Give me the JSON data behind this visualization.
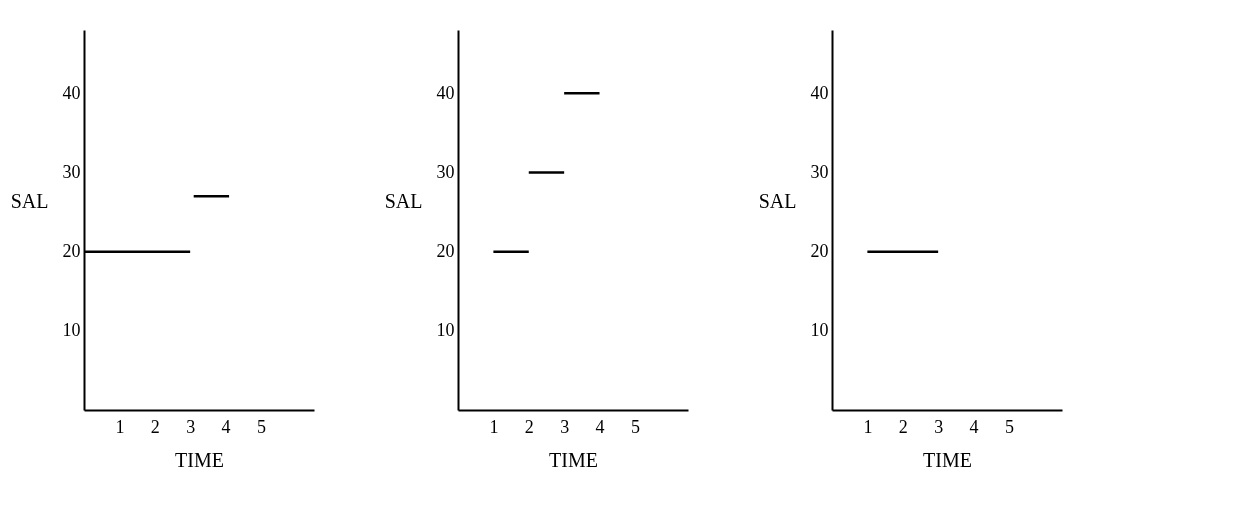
{
  "chart_data": [
    {
      "type": "line",
      "xlabel": "TIME",
      "ylabel": "SAL",
      "xlim": [
        0,
        6.5
      ],
      "ylim": [
        0,
        48
      ],
      "xticks": [
        1,
        2,
        3,
        4,
        5
      ],
      "yticks": [
        10,
        20,
        30,
        40
      ],
      "series": [
        {
          "color": "#000000",
          "x": [
            0,
            3
          ],
          "values": [
            20,
            20
          ]
        },
        {
          "color": "#000000",
          "x": [
            3.1,
            4.1
          ],
          "values": [
            27,
            27
          ]
        }
      ]
    },
    {
      "type": "line",
      "xlabel": "TIME",
      "ylabel": "SAL",
      "xlim": [
        0,
        6.5
      ],
      "ylim": [
        0,
        48
      ],
      "xticks": [
        1,
        2,
        3,
        4,
        5
      ],
      "yticks": [
        10,
        20,
        30,
        40
      ],
      "series": [
        {
          "color": "#000000",
          "x": [
            1,
            2
          ],
          "values": [
            20,
            20
          ]
        },
        {
          "color": "#000000",
          "x": [
            2,
            3
          ],
          "values": [
            30,
            30
          ]
        },
        {
          "color": "#000000",
          "x": [
            3,
            4
          ],
          "values": [
            40,
            40
          ]
        }
      ]
    },
    {
      "type": "line",
      "xlabel": "TIME",
      "ylabel": "SAL",
      "xlim": [
        0,
        6.5
      ],
      "ylim": [
        0,
        48
      ],
      "xticks": [
        1,
        2,
        3,
        4,
        5
      ],
      "yticks": [
        10,
        20,
        30,
        40
      ],
      "series": [
        {
          "color": "#000000",
          "x": [
            1,
            3
          ],
          "values": [
            20,
            20
          ]
        }
      ]
    }
  ]
}
